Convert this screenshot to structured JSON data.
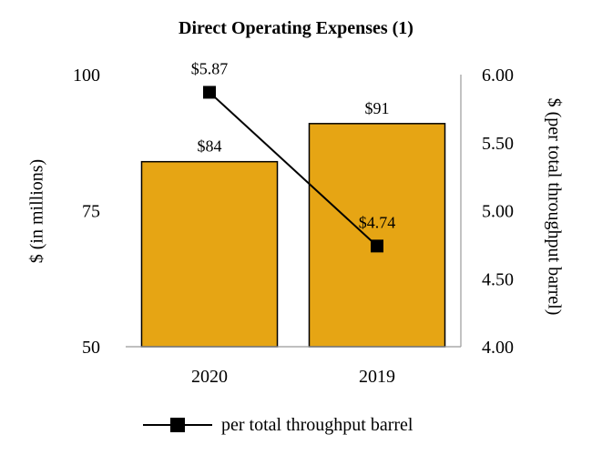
{
  "chart_data": {
    "type": "bar",
    "title": "Direct Operating Expenses (1)",
    "categories": [
      "2020",
      "2019"
    ],
    "series": [
      {
        "type": "bar",
        "axis": "left",
        "values": [
          84,
          91
        ],
        "labels": [
          "$84",
          "$91"
        ],
        "color": "#e6a514"
      },
      {
        "type": "line",
        "axis": "right",
        "name": "per total throughput barrel",
        "values": [
          5.87,
          4.74
        ],
        "labels": [
          "$5.87",
          "$4.74"
        ],
        "color": "#000000",
        "marker": "square"
      }
    ],
    "ylabel": "$ (in millions)",
    "ylim": [
      50,
      100
    ],
    "yticks": [
      "50",
      "75",
      "100"
    ],
    "y2label": "$ (per total throughput barrel)",
    "y2lim": [
      4.0,
      6.0
    ],
    "y2ticks": [
      "4.00",
      "4.50",
      "5.00",
      "5.50",
      "6.00"
    ],
    "grid": false,
    "legend": "bottom"
  }
}
